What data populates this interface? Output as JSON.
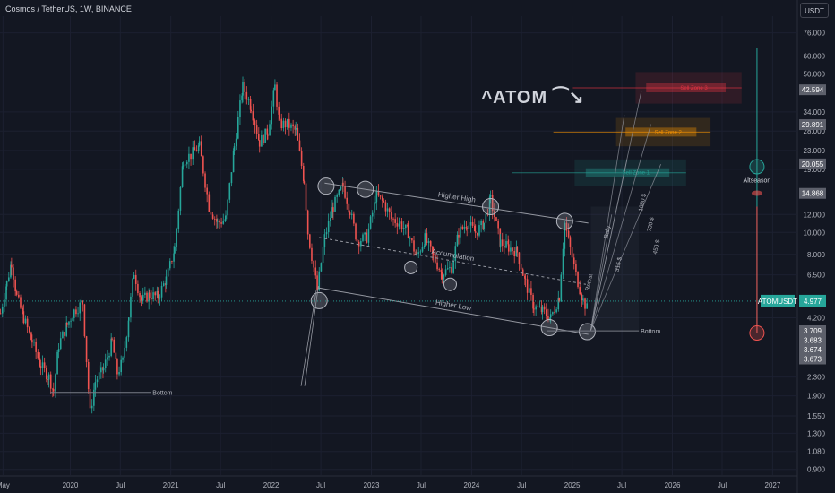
{
  "header": {
    "title": "Cosmos / TetherUS, 1W, BINANCE",
    "currency": "USDT"
  },
  "chart_data": {
    "type": "candlestick",
    "title": "ATOM",
    "symbol": "ATOMUSDT",
    "y_scale": "log",
    "ylim": [
      0.85,
      90
    ],
    "x_range": [
      "2019-04-20",
      "2027-04-01"
    ],
    "y_ticks": [
      76.0,
      60.0,
      50.0,
      34.0,
      28.0,
      23.0,
      19.0,
      12.0,
      10.0,
      8.0,
      6.5,
      4.2,
      2.3,
      1.9,
      1.55,
      1.3,
      1.08,
      0.9
    ],
    "y_tick_labels": [
      "76.000",
      "60.000",
      "50.000",
      "34.000",
      "28.000",
      "23.000",
      "19.000",
      "12.000",
      "10.000",
      "8.000",
      "6.500",
      "4.200",
      "2.300",
      "1.900",
      "1.550",
      "1.300",
      "1.080",
      "0.900"
    ],
    "x_ticks": [
      {
        "date": "2019-05-01",
        "label": "May"
      },
      {
        "date": "2020-01-01",
        "label": "2020"
      },
      {
        "date": "2020-07-01",
        "label": "Jul"
      },
      {
        "date": "2021-01-01",
        "label": "2021"
      },
      {
        "date": "2021-07-01",
        "label": "Jul"
      },
      {
        "date": "2022-01-01",
        "label": "2022"
      },
      {
        "date": "2022-07-01",
        "label": "Jul"
      },
      {
        "date": "2023-01-01",
        "label": "2023"
      },
      {
        "date": "2023-07-01",
        "label": "Jul"
      },
      {
        "date": "2024-01-01",
        "label": "2024"
      },
      {
        "date": "2024-07-01",
        "label": "Jul"
      },
      {
        "date": "2025-01-01",
        "label": "2025"
      },
      {
        "date": "2025-07-01",
        "label": "Jul"
      },
      {
        "date": "2026-01-01",
        "label": "2026"
      },
      {
        "date": "2026-07-01",
        "label": "Jul"
      },
      {
        "date": "2027-01-01",
        "label": "2027"
      }
    ],
    "price_path": [
      {
        "date": "2019-04-22",
        "value": 4.4
      },
      {
        "date": "2019-05-15",
        "value": 6.0
      },
      {
        "date": "2019-06-01",
        "value": 7.4
      },
      {
        "date": "2019-06-20",
        "value": 5.2
      },
      {
        "date": "2019-07-15",
        "value": 4.2
      },
      {
        "date": "2019-08-15",
        "value": 3.3
      },
      {
        "date": "2019-09-15",
        "value": 2.6
      },
      {
        "date": "2019-10-15",
        "value": 2.3
      },
      {
        "date": "2019-11-01",
        "value": 2.0
      },
      {
        "date": "2019-11-20",
        "value": 3.2
      },
      {
        "date": "2019-12-20",
        "value": 3.9
      },
      {
        "date": "2020-01-15",
        "value": 4.5
      },
      {
        "date": "2020-02-15",
        "value": 4.9
      },
      {
        "date": "2020-03-13",
        "value": 1.6
      },
      {
        "date": "2020-04-01",
        "value": 2.2
      },
      {
        "date": "2020-05-01",
        "value": 2.5
      },
      {
        "date": "2020-06-01",
        "value": 3.3
      },
      {
        "date": "2020-06-20",
        "value": 2.4
      },
      {
        "date": "2020-07-10",
        "value": 2.7
      },
      {
        "date": "2020-08-01",
        "value": 4.3
      },
      {
        "date": "2020-08-20",
        "value": 6.7
      },
      {
        "date": "2020-09-15",
        "value": 5.0
      },
      {
        "date": "2020-10-15",
        "value": 5.3
      },
      {
        "date": "2020-11-15",
        "value": 5.2
      },
      {
        "date": "2020-12-15",
        "value": 6.2
      },
      {
        "date": "2021-01-15",
        "value": 8.5
      },
      {
        "date": "2021-02-15",
        "value": 21.0
      },
      {
        "date": "2021-03-15",
        "value": 22.0
      },
      {
        "date": "2021-04-15",
        "value": 24.0
      },
      {
        "date": "2021-05-20",
        "value": 13.0
      },
      {
        "date": "2021-06-20",
        "value": 11.0
      },
      {
        "date": "2021-07-20",
        "value": 11.5
      },
      {
        "date": "2021-08-20",
        "value": 24.0
      },
      {
        "date": "2021-09-20",
        "value": 44.0
      },
      {
        "date": "2021-10-20",
        "value": 36.0
      },
      {
        "date": "2021-11-20",
        "value": 25.0
      },
      {
        "date": "2021-12-20",
        "value": 28.0
      },
      {
        "date": "2022-01-15",
        "value": 44.0
      },
      {
        "date": "2022-02-01",
        "value": 30.0
      },
      {
        "date": "2022-03-01",
        "value": 30.0
      },
      {
        "date": "2022-04-01",
        "value": 28.0
      },
      {
        "date": "2022-05-01",
        "value": 17.0
      },
      {
        "date": "2022-05-15",
        "value": 10.0
      },
      {
        "date": "2022-06-18",
        "value": 5.6
      },
      {
        "date": "2022-07-15",
        "value": 9.5
      },
      {
        "date": "2022-08-15",
        "value": 13.0
      },
      {
        "date": "2022-09-20",
        "value": 16.0
      },
      {
        "date": "2022-10-15",
        "value": 12.5
      },
      {
        "date": "2022-11-10",
        "value": 9.2
      },
      {
        "date": "2022-12-15",
        "value": 9.5
      },
      {
        "date": "2023-01-20",
        "value": 14.5
      },
      {
        "date": "2023-02-15",
        "value": 13.5
      },
      {
        "date": "2023-03-15",
        "value": 11.5
      },
      {
        "date": "2023-04-15",
        "value": 11.0
      },
      {
        "date": "2023-05-15",
        "value": 10.0
      },
      {
        "date": "2023-06-15",
        "value": 7.8
      },
      {
        "date": "2023-07-15",
        "value": 9.4
      },
      {
        "date": "2023-08-15",
        "value": 7.8
      },
      {
        "date": "2023-09-15",
        "value": 6.6
      },
      {
        "date": "2023-10-20",
        "value": 7.0
      },
      {
        "date": "2023-11-15",
        "value": 10.0
      },
      {
        "date": "2023-12-15",
        "value": 11.0
      },
      {
        "date": "2024-01-15",
        "value": 10.0
      },
      {
        "date": "2024-02-15",
        "value": 11.0
      },
      {
        "date": "2024-03-10",
        "value": 14.0
      },
      {
        "date": "2024-04-15",
        "value": 9.0
      },
      {
        "date": "2024-05-15",
        "value": 8.6
      },
      {
        "date": "2024-06-15",
        "value": 8.2
      },
      {
        "date": "2024-07-15",
        "value": 6.0
      },
      {
        "date": "2024-08-15",
        "value": 4.7
      },
      {
        "date": "2024-09-15",
        "value": 4.5
      },
      {
        "date": "2024-10-15",
        "value": 4.2
      },
      {
        "date": "2024-11-15",
        "value": 5.2
      },
      {
        "date": "2024-12-05",
        "value": 11.0
      },
      {
        "date": "2024-12-25",
        "value": 8.5
      },
      {
        "date": "2025-01-15",
        "value": 6.5
      },
      {
        "date": "2025-02-10",
        "value": 5.0
      },
      {
        "date": "2025-03-01",
        "value": 4.5
      }
    ],
    "pattern": {
      "higher_high": [
        {
          "date": "2022-07-15",
          "value": 16.5
        },
        {
          "date": "2025-03-01",
          "value": 11.0
        }
      ],
      "higher_low": [
        {
          "date": "2022-06-20",
          "value": 5.7
        },
        {
          "date": "2025-03-01",
          "value": 3.55
        }
      ],
      "accumulation_mid": [
        {
          "date": "2022-06-25",
          "value": 9.5
        },
        {
          "date": "2025-02-20",
          "value": 5.9
        }
      ],
      "circles": [
        {
          "date": "2022-07-20",
          "value": 16.0,
          "style": "highlight"
        },
        {
          "date": "2022-12-10",
          "value": 15.5,
          "style": "highlight"
        },
        {
          "date": "2024-03-10",
          "value": 13.0,
          "style": "highlight"
        },
        {
          "date": "2024-12-05",
          "value": 11.2,
          "style": "highlight"
        },
        {
          "date": "2022-06-25",
          "value": 5.0,
          "style": "highlight"
        },
        {
          "date": "2024-10-10",
          "value": 3.8,
          "style": "highlight"
        },
        {
          "date": "2025-02-25",
          "value": 3.65,
          "style": "highlight"
        },
        {
          "date": "2023-05-25",
          "value": 7.0,
          "style": "dark"
        },
        {
          "date": "2023-10-15",
          "value": 5.9,
          "style": "dark"
        }
      ]
    },
    "horizontal_levels": [
      {
        "label": "Bottom",
        "value": 1.97,
        "from": "2019-10-20",
        "to": "2020-10-20"
      },
      {
        "label": "Bottom",
        "value": 3.68,
        "from": "2024-10-01",
        "to": "2025-09-01"
      }
    ],
    "sell_zones": [
      {
        "label": "Sell Zone 1",
        "from": "2025-01-10",
        "to": "2026-02-20",
        "low": 16.0,
        "high": 21.0,
        "color": "#26a69a"
      },
      {
        "label": "Sell Zone 2",
        "from": "2025-06-10",
        "to": "2026-05-20",
        "low": 24.0,
        "high": 32.0,
        "color": "#ff9800"
      },
      {
        "label": "Sell Zone 3",
        "from": "2025-08-20",
        "to": "2026-09-10",
        "low": 37.0,
        "high": 51.0,
        "color": "#f23645"
      }
    ],
    "projection_labels": [
      {
        "label": "Rally",
        "date": "2025-05-15",
        "value": 10.0
      },
      {
        "label": "Retest",
        "date": "2025-03-10",
        "value": 6.0
      },
      {
        "label": "315 $",
        "date": "2025-06-25",
        "value": 7.2
      },
      {
        "label": "1080 $",
        "date": "2025-09-20",
        "value": 13.5
      },
      {
        "label": "730 $",
        "date": "2025-10-20",
        "value": 10.8
      },
      {
        "label": "450 $",
        "date": "2025-11-10",
        "value": 8.6
      }
    ],
    "altseason_label": "Altseason",
    "annotation_labels": {
      "higher_high": "Higher High",
      "higher_low": "Higher Low",
      "accumulation": "Accumulation",
      "atom_arrow": "ATOM"
    },
    "price_tags": [
      {
        "value": 42.594,
        "label": "42.594",
        "style": "gray"
      },
      {
        "value": 29.891,
        "label": "29.891",
        "style": "gray"
      },
      {
        "value": 20.055,
        "label": "20.055",
        "style": "gray"
      },
      {
        "value": 14.868,
        "label": "14.868",
        "style": "gray"
      },
      {
        "value": 4.977,
        "label": "4.977",
        "style": "green",
        "prefix": "ATOMUSDT"
      },
      {
        "value": 3.709,
        "label": "3.709",
        "style": "gray"
      },
      {
        "value": 3.683,
        "label": "3.683",
        "style": "gray"
      },
      {
        "value": 3.674,
        "label": "3.674",
        "style": "gray"
      },
      {
        "value": 3.673,
        "label": "3.673",
        "style": "gray"
      }
    ]
  }
}
